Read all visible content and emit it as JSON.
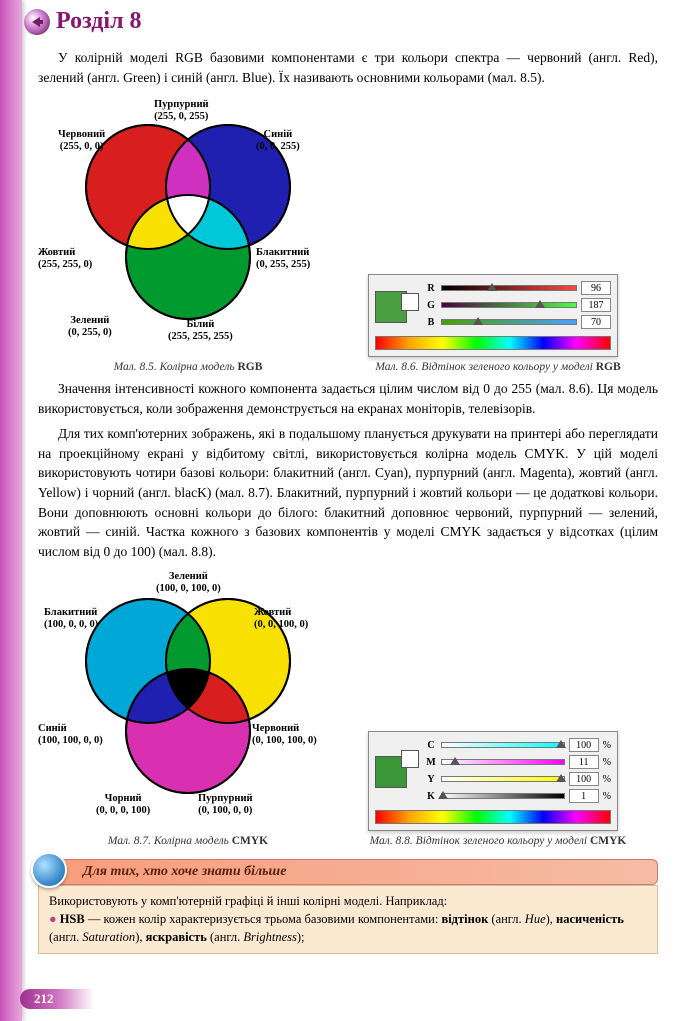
{
  "header": {
    "title": "Розділ 8"
  },
  "page_number": "212",
  "paragraphs": {
    "p1": "У колірній моделі RGB базовими компонентами є три кольори спектра — червоний (англ. Red), зелений (англ. Green) і синій (англ. Blue). Їх називають основними кольорами (мал. 8.5).",
    "p2": "Значення інтенсивності кожного компонента задається цілим числом від 0 до 255 (мал. 8.6). Ця модель використовується, коли зображення демонструється на екранах моніторів, телевізорів.",
    "p3": "Для тих комп'ютерних зображень, які в подальшому планується друкувати на принтері або переглядати на проекційному екрані у відбитому світлі, використовується колірна модель CMYK. У цій моделі використовують чотири базові кольори: блакитний (англ. Cyan), пурпурний (англ. Magenta), жовтий (англ. Yellow) і чорний (англ. blacK) (мал. 8.7). Блакитний, пурпурний і жовтий кольори — це додаткові кольори. Вони доповнюють основні кольори до білого: блакитний доповнює червоний, пурпурний — зелений, жовтий — синій. Частка кожного з базових компонентів у моделі CMYK задається у відсотках (цілим числом від 0 до 100) (мал. 8.8)."
  },
  "captions": {
    "c1_num": "Мал. 8.5.",
    "c1_text": " Колірна модель ",
    "c1_bold": "RGB",
    "c2_num": "Мал. 8.6.",
    "c2_text": " Відтінок зеленого кольору у моделі ",
    "c2_bold": "RGB",
    "c3_num": "Мал. 8.7.",
    "c3_text": " Колірна модель ",
    "c3_bold": "CMYK",
    "c4_num": "Мал. 8.8.",
    "c4_text": " Відтінок зеленого кольору у моделі ",
    "c4_bold": "CMYK"
  },
  "rgb_venn": {
    "colors": {
      "red": "#d81e1e",
      "green": "#009a2e",
      "blue": "#2020b0",
      "yellow": "#f8e000",
      "cyan": "#00c8d8",
      "magenta": "#d030c0",
      "white": "#ffffff"
    },
    "labels": {
      "red": "Червоний\n(255, 0, 0)",
      "magenta": "Пурпурний\n(255, 0, 255)",
      "blue": "Синій\n(0, 0, 255)",
      "yellow": "Жовтий\n(255, 255, 0)",
      "cyan": "Блакитний\n(0, 255, 255)",
      "green": "Зелений\n(0, 255, 0)",
      "white": "Білий\n(255, 255, 255)"
    }
  },
  "rgb_sliders": {
    "swatch": "#4aa040",
    "rows": [
      {
        "lab": "R",
        "from": "#000000",
        "to": "#ff4a40",
        "pos": 37,
        "val": "96"
      },
      {
        "lab": "G",
        "from": "#4a0040",
        "to": "#4aff40",
        "pos": 73,
        "val": "187"
      },
      {
        "lab": "B",
        "from": "#4aa000",
        "to": "#4aa0ff",
        "pos": 27,
        "val": "70"
      }
    ]
  },
  "cmyk_venn": {
    "colors": {
      "cyan": "#00a8d8",
      "magenta": "#d830b0",
      "yellow": "#f8e000",
      "red": "#d81e1e",
      "green": "#009a2e",
      "blue": "#2020b0",
      "black": "#000000"
    },
    "labels": {
      "cyan": "Блакитний\n(100, 0, 0, 0)",
      "green": "Зелений\n(100, 0, 100, 0)",
      "yellow": "Жовтий\n(0, 0, 100, 0)",
      "blue": "Синій\n(100, 100, 0, 0)",
      "red": "Червоний\n(0, 100, 100, 0)",
      "black": "Чорний\n(0, 0, 0, 100)",
      "magenta": "Пурпурний\n(0, 100, 0, 0)"
    }
  },
  "cmyk_sliders": {
    "swatch": "#3a9838",
    "rows": [
      {
        "lab": "C",
        "from": "#ffffff",
        "to": "#00ffff",
        "pos": 98,
        "val": "100",
        "pct": "%"
      },
      {
        "lab": "M",
        "from": "#ffffff",
        "to": "#ff00ff",
        "pos": 11,
        "val": "11",
        "pct": "%"
      },
      {
        "lab": "Y",
        "from": "#ffffff",
        "to": "#ffff00",
        "pos": 98,
        "val": "100",
        "pct": "%"
      },
      {
        "lab": "K",
        "from": "#ffffff",
        "to": "#000000",
        "pos": 1,
        "val": "1",
        "pct": "%"
      }
    ]
  },
  "more": {
    "header": "Для тих, хто хоче знати більше",
    "line1": "Використовують у комп'ютерній графіці й інші колірні моделі. Наприклад:",
    "line2_label": "HSB",
    "line2_text1": " — кожен колір характеризується трьома базовими компонентами: ",
    "line2_b1": "відтінок",
    "line2_text2": " (англ. ",
    "line2_i1": "Hue",
    "line2_p1": "), ",
    "line2_b2": "насиченість",
    "line2_text3": " (англ. ",
    "line2_i2": "Saturation",
    "line2_p2": "), ",
    "line2_b3": "яскравість",
    "line2_text4": " (англ. ",
    "line2_i3": "Brightness",
    "line2_p3": ");"
  }
}
